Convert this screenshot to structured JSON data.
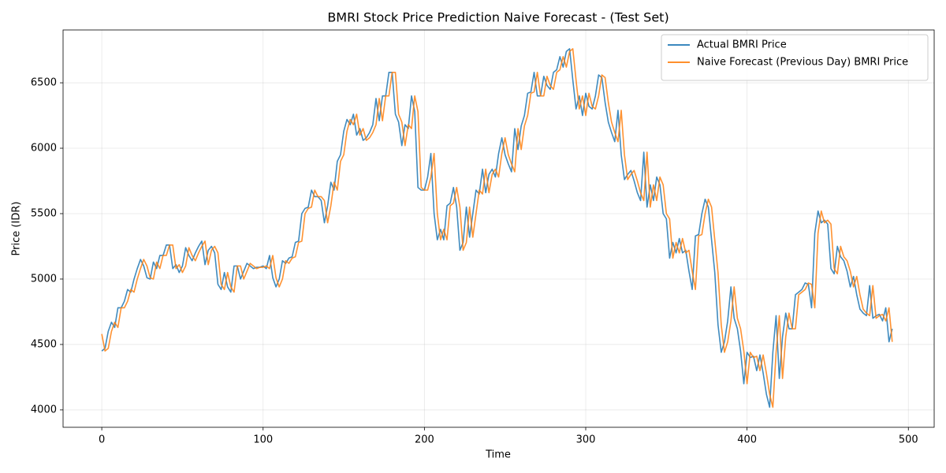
{
  "chart_data": {
    "type": "line",
    "title": "BMRI Stock Price Prediction Naive Forecast - (Test Set)",
    "x_label": "Time",
    "y_label": "Price (IDR)",
    "x": [
      0,
      2,
      4,
      6,
      8,
      10,
      12,
      14,
      16,
      18,
      20,
      22,
      24,
      26,
      28,
      30,
      32,
      34,
      36,
      38,
      40,
      42,
      44,
      46,
      48,
      50,
      52,
      54,
      56,
      58,
      60,
      62,
      64,
      66,
      68,
      70,
      72,
      74,
      76,
      78,
      80,
      82,
      84,
      86,
      88,
      90,
      92,
      94,
      96,
      98,
      100,
      102,
      104,
      106,
      108,
      110,
      112,
      114,
      116,
      118,
      120,
      122,
      124,
      126,
      128,
      130,
      132,
      134,
      136,
      138,
      140,
      142,
      144,
      146,
      148,
      150,
      152,
      154,
      156,
      158,
      160,
      162,
      164,
      166,
      168,
      170,
      172,
      174,
      176,
      178,
      180,
      182,
      184,
      186,
      188,
      190,
      192,
      194,
      196,
      198,
      200,
      202,
      204,
      206,
      208,
      210,
      212,
      214,
      216,
      218,
      220,
      222,
      224,
      226,
      228,
      230,
      232,
      234,
      236,
      238,
      240,
      242,
      244,
      246,
      248,
      250,
      252,
      254,
      256,
      258,
      260,
      262,
      264,
      266,
      268,
      270,
      272,
      274,
      276,
      278,
      280,
      282,
      284,
      286,
      288,
      290,
      292,
      294,
      296,
      298,
      300,
      302,
      304,
      306,
      308,
      310,
      312,
      314,
      316,
      318,
      320,
      322,
      324,
      326,
      328,
      330,
      332,
      334,
      336,
      338,
      340,
      342,
      344,
      346,
      348,
      350,
      352,
      354,
      356,
      358,
      360,
      362,
      364,
      366,
      368,
      370,
      372,
      374,
      376,
      378,
      380,
      382,
      384,
      386,
      388,
      390,
      392,
      394,
      396,
      398,
      400,
      402,
      404,
      406,
      408,
      410,
      412,
      414,
      416,
      418,
      420,
      422,
      424,
      426,
      428,
      430,
      432,
      434,
      436,
      438,
      440,
      442,
      444,
      446,
      448,
      450,
      452,
      454,
      456,
      458,
      460,
      462,
      464,
      466,
      468,
      470,
      472,
      474,
      476,
      478,
      480,
      482,
      484,
      486,
      488,
      490
    ],
    "series": [
      {
        "name": "Actual BMRI Price",
        "color": "#1f77b4",
        "values": [
          4450,
          4470,
          4600,
          4670,
          4630,
          4780,
          4780,
          4830,
          4920,
          4900,
          5000,
          5080,
          5150,
          5100,
          5010,
          5000,
          5130,
          5080,
          5180,
          5180,
          5260,
          5260,
          5080,
          5110,
          5050,
          5100,
          5240,
          5180,
          5140,
          5200,
          5250,
          5290,
          5110,
          5220,
          5250,
          5200,
          4960,
          4920,
          5050,
          4940,
          4900,
          5100,
          5100,
          5000,
          5060,
          5120,
          5100,
          5080,
          5090,
          5090,
          5100,
          5080,
          5180,
          5010,
          4940,
          5000,
          5140,
          5120,
          5160,
          5170,
          5280,
          5290,
          5500,
          5540,
          5550,
          5680,
          5630,
          5630,
          5600,
          5430,
          5560,
          5740,
          5680,
          5900,
          5950,
          6130,
          6220,
          6180,
          6260,
          6100,
          6150,
          6060,
          6080,
          6120,
          6180,
          6380,
          6210,
          6400,
          6400,
          6580,
          6580,
          6260,
          6200,
          6020,
          6180,
          6150,
          6400,
          6280,
          5700,
          5680,
          5680,
          5780,
          5960,
          5500,
          5300,
          5380,
          5300,
          5560,
          5580,
          5700,
          5550,
          5220,
          5280,
          5550,
          5320,
          5500,
          5680,
          5650,
          5840,
          5660,
          5800,
          5840,
          5780,
          5960,
          6080,
          5950,
          5880,
          5820,
          6150,
          5990,
          6170,
          6250,
          6420,
          6430,
          6580,
          6400,
          6400,
          6550,
          6480,
          6450,
          6580,
          6600,
          6700,
          6620,
          6740,
          6760,
          6520,
          6300,
          6400,
          6250,
          6420,
          6320,
          6300,
          6400,
          6560,
          6540,
          6350,
          6200,
          6120,
          6050,
          6290,
          5950,
          5760,
          5800,
          5830,
          5750,
          5660,
          5600,
          5970,
          5550,
          5720,
          5600,
          5780,
          5720,
          5500,
          5460,
          5160,
          5280,
          5200,
          5310,
          5200,
          5220,
          5060,
          4920,
          5330,
          5340,
          5500,
          5610,
          5550,
          5300,
          5050,
          4650,
          4440,
          4520,
          4680,
          4940,
          4700,
          4620,
          4450,
          4200,
          4440,
          4400,
          4410,
          4300,
          4420,
          4280,
          4120,
          4020,
          4440,
          4720,
          4240,
          4560,
          4740,
          4620,
          4620,
          4880,
          4900,
          4920,
          4970,
          4960,
          4780,
          5350,
          5520,
          5430,
          5450,
          5420,
          5080,
          5040,
          5250,
          5170,
          5140,
          5060,
          4940,
          5020,
          4880,
          4770,
          4740,
          4720,
          4950,
          4700,
          4720,
          4730,
          4680,
          4780,
          4520,
          4620
        ]
      },
      {
        "name": "Naive Forecast (Previous Day) BMRI Price",
        "color": "#ff7f0e",
        "values": [
          4580,
          4450,
          4470,
          4600,
          4670,
          4630,
          4780,
          4780,
          4830,
          4920,
          4900,
          5000,
          5080,
          5150,
          5100,
          5010,
          5000,
          5130,
          5080,
          5180,
          5180,
          5260,
          5260,
          5080,
          5110,
          5050,
          5100,
          5240,
          5180,
          5140,
          5200,
          5250,
          5290,
          5110,
          5220,
          5250,
          5200,
          4960,
          4920,
          5050,
          4940,
          4900,
          5100,
          5100,
          5000,
          5060,
          5120,
          5100,
          5080,
          5090,
          5090,
          5100,
          5080,
          5180,
          5010,
          4940,
          5000,
          5140,
          5120,
          5160,
          5170,
          5280,
          5290,
          5500,
          5540,
          5550,
          5680,
          5630,
          5630,
          5600,
          5430,
          5560,
          5740,
          5680,
          5900,
          5950,
          6130,
          6220,
          6180,
          6260,
          6100,
          6150,
          6060,
          6080,
          6120,
          6180,
          6380,
          6210,
          6400,
          6400,
          6580,
          6580,
          6260,
          6200,
          6020,
          6180,
          6150,
          6400,
          6280,
          5700,
          5680,
          5680,
          5780,
          5960,
          5500,
          5300,
          5380,
          5300,
          5560,
          5580,
          5700,
          5550,
          5220,
          5280,
          5550,
          5320,
          5500,
          5680,
          5650,
          5840,
          5660,
          5800,
          5840,
          5780,
          5960,
          6080,
          5950,
          5880,
          5820,
          6150,
          5990,
          6170,
          6250,
          6420,
          6430,
          6580,
          6400,
          6400,
          6550,
          6480,
          6450,
          6580,
          6600,
          6700,
          6620,
          6740,
          6760,
          6520,
          6300,
          6400,
          6250,
          6420,
          6320,
          6300,
          6400,
          6560,
          6540,
          6350,
          6200,
          6120,
          6050,
          6290,
          5950,
          5760,
          5800,
          5830,
          5750,
          5660,
          5600,
          5970,
          5550,
          5720,
          5600,
          5780,
          5720,
          5500,
          5460,
          5160,
          5280,
          5200,
          5310,
          5200,
          5220,
          5060,
          4920,
          5330,
          5340,
          5500,
          5610,
          5550,
          5300,
          5050,
          4650,
          4440,
          4520,
          4680,
          4940,
          4700,
          4620,
          4450,
          4200,
          4440,
          4400,
          4410,
          4300,
          4420,
          4280,
          4120,
          4020,
          4440,
          4720,
          4240,
          4560,
          4740,
          4620,
          4620,
          4880,
          4900,
          4920,
          4970,
          4960,
          4780,
          5350,
          5520,
          5430,
          5450,
          5420,
          5080,
          5040,
          5250,
          5170,
          5140,
          5060,
          4940,
          5020,
          4880,
          4770,
          4740,
          4720,
          4950,
          4700,
          4720,
          4730,
          4680,
          4780,
          4520
        ]
      }
    ],
    "xlim": [
      -24,
      516
    ],
    "xticks": [
      0,
      100,
      200,
      300,
      400,
      500
    ],
    "ylim": [
      3867,
      6904
    ],
    "yticks": [
      4000,
      4500,
      5000,
      5500,
      6000,
      6500
    ],
    "grid": true,
    "legend": "upper right"
  }
}
